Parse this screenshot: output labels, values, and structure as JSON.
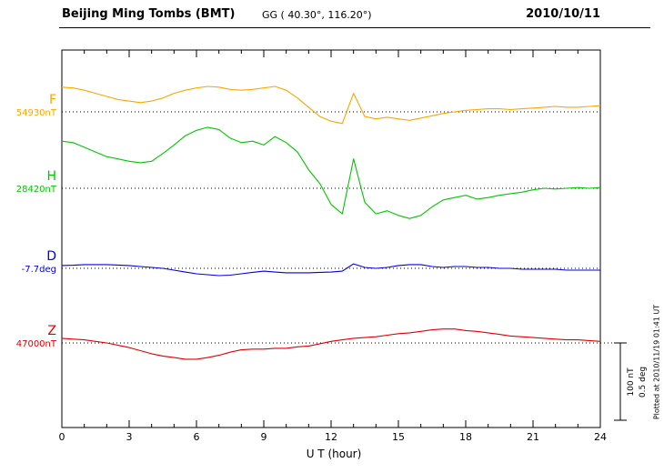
{
  "header": {
    "station": "Beijing Ming Tombs (BMT)",
    "coords": "GG ( 40.30°, 116.20°)",
    "date": "2010/10/11"
  },
  "footer_credit": "Plotted at 2010/11/19 01:41 UT",
  "chart_data": {
    "type": "line",
    "title": "Beijing Ming Tombs (BMT) magnetogram 2010/10/11",
    "xlabel": "U T (hour)",
    "x_range": [
      0,
      24
    ],
    "x_ticks": [
      0,
      3,
      6,
      9,
      12,
      15,
      18,
      21,
      24
    ],
    "grid": "dotted horizontal baseline per component",
    "legend_position": "left margin labels",
    "x_hours": [
      0,
      0.5,
      1,
      1.5,
      2,
      2.5,
      3,
      3.5,
      4,
      4.5,
      5,
      5.5,
      6,
      6.5,
      7,
      7.5,
      8,
      8.5,
      9,
      9.5,
      10,
      10.5,
      11,
      11.5,
      12,
      12.5,
      13,
      13.5,
      14,
      14.5,
      15,
      15.5,
      16,
      16.5,
      17,
      17.5,
      18,
      18.5,
      19,
      19.5,
      20,
      20.5,
      21,
      21.5,
      22,
      22.5,
      23,
      23.5,
      24
    ],
    "series": [
      {
        "id": "F",
        "label": "F",
        "baseline_label": "54930nT",
        "baseline": 54930,
        "unit": "nT",
        "color": "#FFA500",
        "values": [
          54962,
          54961,
          54958,
          54954,
          54950,
          54946,
          54944,
          54942,
          54944,
          54948,
          54954,
          54958,
          54961,
          54963,
          54962,
          54959,
          54958,
          54959,
          54961,
          54963,
          54958,
          54948,
          54936,
          54924,
          54918,
          54915,
          54954,
          54924,
          54921,
          54923,
          54921,
          54919,
          54922,
          54925,
          54928,
          54930,
          54932,
          54933,
          54934,
          54934,
          54933,
          54934,
          54935,
          54936,
          54937,
          54936,
          54936,
          54937,
          54938
        ]
      },
      {
        "id": "H",
        "label": "H",
        "baseline_label": "28420nT",
        "baseline": 28420,
        "unit": "nT",
        "color": "#00C800",
        "values": [
          28481,
          28479,
          28473,
          28467,
          28461,
          28458,
          28455,
          28453,
          28455,
          28465,
          28476,
          28488,
          28495,
          28499,
          28496,
          28485,
          28479,
          28481,
          28476,
          28487,
          28479,
          28467,
          28444,
          28426,
          28399,
          28387,
          28458,
          28402,
          28387,
          28391,
          28385,
          28381,
          28385,
          28396,
          28405,
          28408,
          28411,
          28406,
          28408,
          28411,
          28413,
          28415,
          28418,
          28420,
          28419,
          28420,
          28421,
          28420,
          28421
        ]
      },
      {
        "id": "D",
        "label": "D",
        "baseline_label": "-7.7deg",
        "baseline": -7.7,
        "unit": "deg",
        "color": "#0000E0",
        "values": [
          -7.682,
          -7.68,
          -7.676,
          -7.676,
          -7.676,
          -7.679,
          -7.682,
          -7.688,
          -7.694,
          -7.7,
          -7.712,
          -7.724,
          -7.735,
          -7.741,
          -7.747,
          -7.744,
          -7.735,
          -7.726,
          -7.718,
          -7.724,
          -7.729,
          -7.729,
          -7.729,
          -7.726,
          -7.724,
          -7.718,
          -7.671,
          -7.694,
          -7.7,
          -7.694,
          -7.682,
          -7.676,
          -7.676,
          -7.688,
          -7.694,
          -7.688,
          -7.688,
          -7.694,
          -7.694,
          -7.7,
          -7.7,
          -7.706,
          -7.706,
          -7.706,
          -7.706,
          -7.712,
          -7.712,
          -7.712,
          -7.712
        ]
      },
      {
        "id": "Z",
        "label": "Z",
        "baseline_label": "47000nT",
        "baseline": 47000,
        "unit": "nT",
        "color": "#E00000",
        "values": [
          47006,
          47005,
          47004,
          47002,
          47000,
          46997,
          46994,
          46990,
          46986,
          46983,
          46981,
          46979,
          46979,
          46981,
          46984,
          46988,
          46991,
          46992,
          46992,
          46993,
          46993,
          46995,
          46996,
          46999,
          47002,
          47004,
          47006,
          47007,
          47008,
          47010,
          47012,
          47013,
          47015,
          47017,
          47018,
          47018,
          47016,
          47015,
          47013,
          47011,
          47009,
          47008,
          47007,
          47006,
          47005,
          47004,
          47004,
          47003,
          47002
        ]
      }
    ],
    "scale_bar": {
      "nT_label": "100 nT",
      "deg_label": "0.5 deg",
      "nT": 100,
      "deg": 0.5
    }
  }
}
